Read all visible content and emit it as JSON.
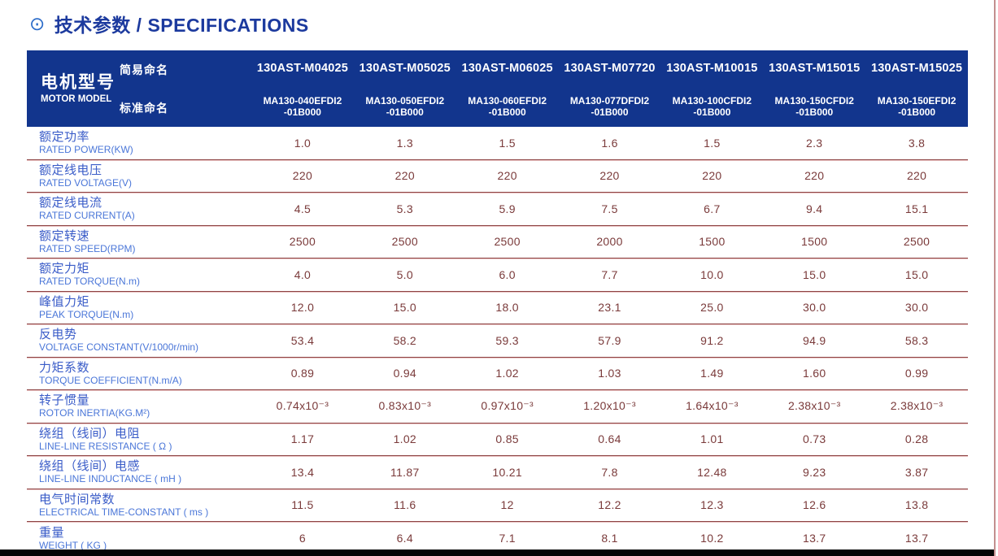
{
  "page": {
    "bullet_glyph": "⊙",
    "title": "技术参数 / SPECIFICATIONS"
  },
  "colors": {
    "header_bg": "#12358d",
    "header_text": "#ffffff",
    "title_blue": "#1c3a9e",
    "label_blue_zh": "#3a5cc8",
    "label_blue_en": "#4a76d8",
    "value_maroon": "#7a3a3a",
    "divider_maroon": "#8d4343",
    "divider_light": "#eac4c4",
    "right_border_pink": "#c38f8f",
    "bottom_bar_black": "#050505"
  },
  "table": {
    "corner": {
      "zh": "电机型号",
      "en": "MOTOR MODEL"
    },
    "naming": {
      "simple": "简易命名",
      "standard": "标准命名"
    },
    "models": [
      {
        "simple": "130AST-M04025",
        "standard_line1": "MA130-040EFDI2",
        "standard_line2": "-01B000"
      },
      {
        "simple": "130AST-M05025",
        "standard_line1": "MA130-050EFDI2",
        "standard_line2": "-01B000"
      },
      {
        "simple": "130AST-M06025",
        "standard_line1": "MA130-060EFDI2",
        "standard_line2": "-01B000"
      },
      {
        "simple": "130AST-M07720",
        "standard_line1": "MA130-077DFDI2",
        "standard_line2": "-01B000"
      },
      {
        "simple": "130AST-M10015",
        "standard_line1": "MA130-100CFDI2",
        "standard_line2": "-01B000"
      },
      {
        "simple": "130AST-M15015",
        "standard_line1": "MA130-150CFDI2",
        "standard_line2": "-01B000"
      },
      {
        "simple": "130AST-M15025",
        "standard_line1": "MA130-150EFDI2",
        "standard_line2": "-01B000"
      }
    ],
    "rows": [
      {
        "zh": "额定功率",
        "en": "RATED POWER(KW)",
        "values": [
          "1.0",
          "1.3",
          "1.5",
          "1.6",
          "1.5",
          "2.3",
          "3.8"
        ]
      },
      {
        "zh": "额定线电压",
        "en": "RATED VOLTAGE(V)",
        "values": [
          "220",
          "220",
          "220",
          "220",
          "220",
          "220",
          "220"
        ]
      },
      {
        "zh": "额定线电流",
        "en": "RATED CURRENT(A)",
        "values": [
          "4.5",
          "5.3",
          "5.9",
          "7.5",
          "6.7",
          "9.4",
          "15.1"
        ]
      },
      {
        "zh": "额定转速",
        "en": "RATED SPEED(RPM)",
        "values": [
          "2500",
          "2500",
          "2500",
          "2000",
          "1500",
          "1500",
          "2500"
        ]
      },
      {
        "zh": "额定力矩",
        "en": "RATED TORQUE(N.m)",
        "values": [
          "4.0",
          "5.0",
          "6.0",
          "7.7",
          "10.0",
          "15.0",
          "15.0"
        ]
      },
      {
        "zh": "峰值力矩",
        "en": "PEAK TORQUE(N.m)",
        "values": [
          "12.0",
          "15.0",
          "18.0",
          "23.1",
          "25.0",
          "30.0",
          "30.0"
        ]
      },
      {
        "zh": "反电势",
        "en": "VOLTAGE CONSTANT(V/1000r/min)",
        "values": [
          "53.4",
          "58.2",
          "59.3",
          "57.9",
          "91.2",
          "94.9",
          "58.3"
        ]
      },
      {
        "zh": "力矩系数",
        "en": "TORQUE COEFFICIENT(N.m/A)",
        "values": [
          "0.89",
          "0.94",
          "1.02",
          "1.03",
          "1.49",
          "1.60",
          "0.99"
        ]
      },
      {
        "zh": "转子惯量",
        "en": "ROTOR INERTIA(KG.M²)",
        "values": [
          "0.74x10⁻³",
          "0.83x10⁻³",
          "0.97x10⁻³",
          "1.20x10⁻³",
          "1.64x10⁻³",
          "2.38x10⁻³",
          "2.38x10⁻³"
        ]
      },
      {
        "zh": "绕组（线间）电阻",
        "en": "LINE-LINE RESISTANCE ( Ω )",
        "values": [
          "1.17",
          "1.02",
          "0.85",
          "0.64",
          "1.01",
          "0.73",
          "0.28"
        ]
      },
      {
        "zh": "绕组（线间）电感",
        "en": "LINE-LINE INDUCTANCE ( mH )",
        "values": [
          "13.4",
          "11.87",
          "10.21",
          "7.8",
          "12.48",
          "9.23",
          "3.87"
        ]
      },
      {
        "zh": "电气时间常数",
        "en": "ELECTRICAL TIME-CONSTANT ( ms )",
        "values": [
          "11.5",
          "11.6",
          "12",
          "12.2",
          "12.3",
          "12.6",
          "13.8"
        ]
      },
      {
        "zh": "重量",
        "en": "WEIGHT ( KG )",
        "values": [
          "6",
          "6.4",
          "7.1",
          "8.1",
          "10.2",
          "13.7",
          "13.7"
        ]
      }
    ]
  }
}
